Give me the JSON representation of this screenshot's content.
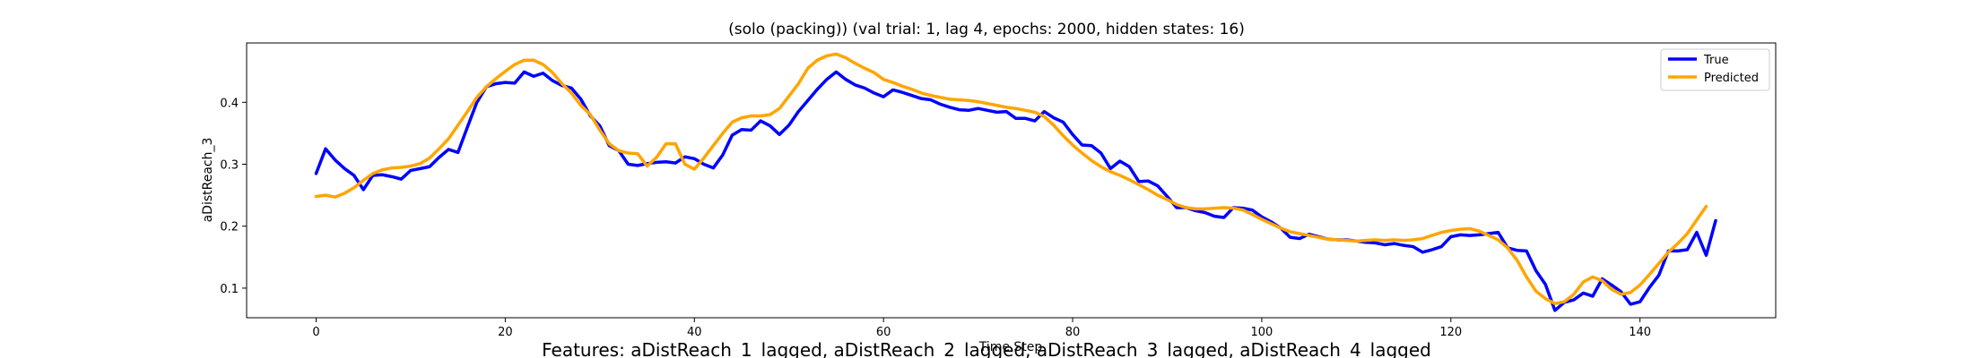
{
  "chart_data": {
    "type": "line",
    "title": "(solo (packing)) (val trial: 1, lag 4, epochs: 2000, hidden states: 16)",
    "xlabel": "Time Step",
    "ylabel": "aDistReach_3",
    "caption": "Features: aDistReach_1_lagged, aDistReach_2_lagged, aDistReach_3_lagged, aDistReach_4_lagged",
    "xlim": [
      -7.35,
      154.35
    ],
    "ylim": [
      0.0522,
      0.4958
    ],
    "xticks": [
      0,
      20,
      40,
      60,
      80,
      100,
      120,
      140
    ],
    "yticks": [
      0.1,
      0.2,
      0.3,
      0.4
    ],
    "ytick_labels": [
      "0.1",
      "0.2",
      "0.3",
      "0.4"
    ],
    "grid": false,
    "legend_position": "top-right",
    "series": [
      {
        "name": "True",
        "color": "#0000ff",
        "values": [
          0.285,
          0.325,
          0.307,
          0.293,
          0.282,
          0.259,
          0.282,
          0.283,
          0.28,
          0.276,
          0.29,
          0.293,
          0.296,
          0.311,
          0.324,
          0.319,
          0.36,
          0.4,
          0.425,
          0.43,
          0.432,
          0.431,
          0.449,
          0.442,
          0.447,
          0.435,
          0.427,
          0.423,
          0.405,
          0.378,
          0.362,
          0.33,
          0.322,
          0.3,
          0.298,
          0.301,
          0.303,
          0.304,
          0.302,
          0.312,
          0.309,
          0.3,
          0.294,
          0.315,
          0.347,
          0.356,
          0.355,
          0.37,
          0.362,
          0.348,
          0.363,
          0.385,
          0.403,
          0.421,
          0.437,
          0.449,
          0.437,
          0.428,
          0.423,
          0.415,
          0.409,
          0.42,
          0.416,
          0.411,
          0.406,
          0.404,
          0.397,
          0.392,
          0.388,
          0.387,
          0.39,
          0.387,
          0.384,
          0.385,
          0.374,
          0.374,
          0.37,
          0.385,
          0.375,
          0.368,
          0.348,
          0.331,
          0.33,
          0.318,
          0.293,
          0.305,
          0.296,
          0.272,
          0.273,
          0.265,
          0.248,
          0.23,
          0.23,
          0.225,
          0.222,
          0.216,
          0.214,
          0.23,
          0.229,
          0.226,
          0.215,
          0.207,
          0.197,
          0.182,
          0.18,
          0.187,
          0.183,
          0.179,
          0.178,
          0.178,
          0.176,
          0.174,
          0.173,
          0.17,
          0.172,
          0.169,
          0.167,
          0.158,
          0.162,
          0.167,
          0.183,
          0.186,
          0.185,
          0.186,
          0.188,
          0.19,
          0.165,
          0.161,
          0.16,
          0.128,
          0.106,
          0.064,
          0.077,
          0.081,
          0.092,
          0.087,
          0.115,
          0.105,
          0.094,
          0.074,
          0.078,
          0.101,
          0.121,
          0.16,
          0.16,
          0.162,
          0.19,
          0.153,
          0.209
        ]
      },
      {
        "name": "Predicted",
        "color": "#ffa500",
        "values": [
          0.248,
          0.25,
          0.247,
          0.253,
          0.262,
          0.274,
          0.285,
          0.291,
          0.294,
          0.295,
          0.297,
          0.301,
          0.31,
          0.325,
          0.341,
          0.363,
          0.385,
          0.408,
          0.425,
          0.438,
          0.45,
          0.461,
          0.468,
          0.468,
          0.461,
          0.448,
          0.43,
          0.415,
          0.395,
          0.38,
          0.355,
          0.333,
          0.322,
          0.318,
          0.317,
          0.297,
          0.311,
          0.333,
          0.333,
          0.3,
          0.292,
          0.31,
          0.33,
          0.35,
          0.368,
          0.375,
          0.378,
          0.378,
          0.38,
          0.39,
          0.41,
          0.43,
          0.455,
          0.468,
          0.475,
          0.478,
          0.472,
          0.463,
          0.455,
          0.448,
          0.437,
          0.432,
          0.426,
          0.421,
          0.415,
          0.411,
          0.408,
          0.405,
          0.404,
          0.403,
          0.401,
          0.398,
          0.395,
          0.392,
          0.39,
          0.387,
          0.384,
          0.377,
          0.363,
          0.346,
          0.331,
          0.318,
          0.306,
          0.296,
          0.288,
          0.282,
          0.275,
          0.267,
          0.259,
          0.25,
          0.243,
          0.235,
          0.23,
          0.228,
          0.228,
          0.229,
          0.23,
          0.229,
          0.226,
          0.219,
          0.211,
          0.204,
          0.197,
          0.191,
          0.188,
          0.185,
          0.182,
          0.179,
          0.178,
          0.177,
          0.176,
          0.177,
          0.178,
          0.177,
          0.178,
          0.177,
          0.178,
          0.18,
          0.185,
          0.19,
          0.193,
          0.195,
          0.196,
          0.192,
          0.185,
          0.178,
          0.165,
          0.145,
          0.118,
          0.095,
          0.083,
          0.075,
          0.078,
          0.09,
          0.11,
          0.118,
          0.112,
          0.098,
          0.09,
          0.093,
          0.105,
          0.122,
          0.14,
          0.158,
          0.172,
          0.188,
          0.21,
          0.232
        ]
      }
    ]
  }
}
